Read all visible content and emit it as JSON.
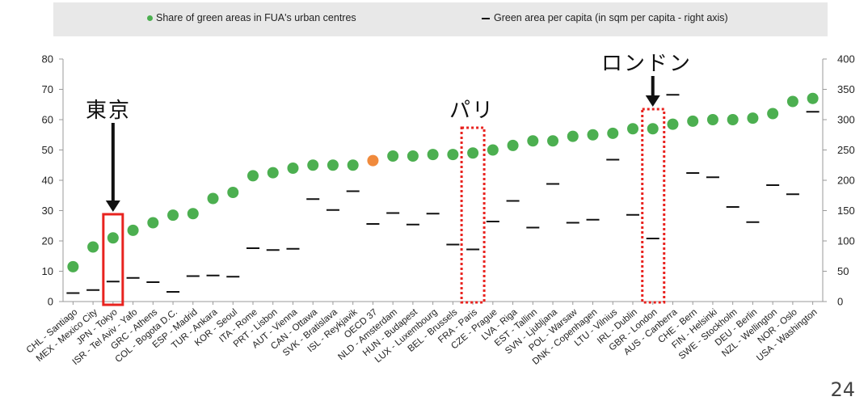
{
  "legend": {
    "green_label": "Share of green areas in FUA's urban centres",
    "dash_label": "Green area per capita (in sqm per capita - right axis)"
  },
  "colors": {
    "green": "#4caf50",
    "orange": "#f08a3c",
    "dash": "#111111",
    "highlight_tokyo": "#e8231f",
    "highlight_dotted": "#e8231f",
    "legend_bg": "#e8e8e8"
  },
  "callouts": {
    "tokyo": "東京",
    "paris": "パリ",
    "london": "ロンドン"
  },
  "page_number": "24",
  "chart_data": {
    "type": "scatter",
    "categories": [
      "CHL - Santiago",
      "MEX - Mexico City",
      "JPN - Tokyo",
      "ISR - Tel Aviv - Yafo",
      "GRC - Athens",
      "COL - Bogota D.C.",
      "ESP - Madrid",
      "TUR - Ankara",
      "KOR - Seoul",
      "ITA - Rome",
      "PRT - Lisbon",
      "AUT - Vienna",
      "CAN - Ottawa",
      "SVK - Bratislava",
      "ISL - Reykjavik",
      "OECD 37",
      "NLD - Amsterdam",
      "HUN - Budapest",
      "LUX - Luxembourg",
      "BEL - Brussels",
      "FRA - Paris",
      "CZE - Prague",
      "LVA - Riga",
      "EST - Tallinn",
      "SVN - Ljubljana",
      "POL - Warsaw",
      "DNK - Copenhagen",
      "LTU - Vilnius",
      "IRL - Dublin",
      "GBR - London",
      "AUS - Canberra",
      "CHE - Bern",
      "FIN - Helsinki",
      "SWE - Stockholm",
      "DEU - Berlin",
      "NZL - Wellington",
      "NOR - Oslo",
      "USA - Washington"
    ],
    "series": [
      {
        "name": "Share of green areas in FUA's urban centres",
        "axis": "left",
        "values": [
          11.5,
          18,
          21,
          23.5,
          26,
          28.5,
          29,
          34,
          36,
          41.5,
          42.5,
          44,
          45,
          45,
          45,
          46.5,
          48,
          48,
          48.5,
          48.5,
          49,
          50,
          51.5,
          53,
          53,
          54.5,
          55,
          55.5,
          57,
          57,
          58.5,
          59.5,
          60,
          60,
          60.5,
          62,
          66,
          67
        ]
      },
      {
        "name": "Green area per capita (in sqm per capita - right axis)",
        "axis": "right",
        "values": [
          14,
          19,
          33,
          39,
          32,
          16,
          42,
          43,
          41,
          88,
          85,
          87,
          169,
          151,
          182,
          128,
          146,
          127,
          145,
          94,
          86,
          132,
          166,
          122,
          194,
          130,
          135,
          234,
          143,
          104,
          341,
          212,
          205,
          156,
          131,
          192,
          177,
          313
        ]
      }
    ],
    "highlight_index": 15,
    "yleft": {
      "ylim": [
        0,
        80
      ],
      "ticks": [
        0,
        10,
        20,
        30,
        40,
        50,
        60,
        70,
        80
      ]
    },
    "yright": {
      "ylim": [
        0,
        400
      ],
      "ticks": [
        0,
        50,
        100,
        150,
        200,
        250,
        300,
        350,
        400
      ]
    },
    "grid": false,
    "legend_position": "top"
  }
}
